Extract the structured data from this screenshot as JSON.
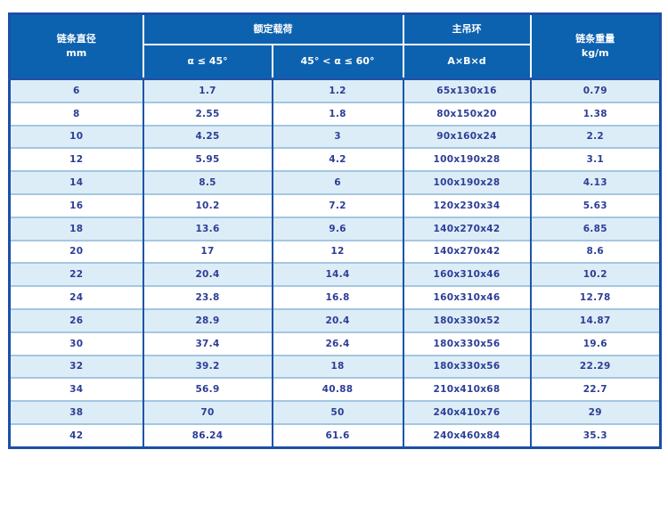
{
  "colors": {
    "header_bg": "#0d62af",
    "header_text": "#ffffff",
    "row_alt_bg": "#ddedf7",
    "row_bg": "#ffffff",
    "data_text": "#2c3e96",
    "outer_border": "#1c4fa6",
    "column_divider": "#1d55a8",
    "row_divider": "#a3c7e1"
  },
  "table": {
    "header": {
      "diameter_title": "链条直径",
      "diameter_unit": "mm",
      "rated_load": "额定载荷",
      "angle_le_45": "α ≤ 45°",
      "angle_45_60": "45° < α ≤ 60°",
      "main_ring": "主吊环",
      "ring_dims": "A×B×d",
      "weight_title": "链条重量",
      "weight_unit": "kg/m"
    },
    "rows": [
      [
        "6",
        "1.7",
        "1.2",
        "65x130x16",
        "0.79"
      ],
      [
        "8",
        "2.55",
        "1.8",
        "80x150x20",
        "1.38"
      ],
      [
        "10",
        "4.25",
        "3",
        "90x160x24",
        "2.2"
      ],
      [
        "12",
        "5.95",
        "4.2",
        "100x190x28",
        "3.1"
      ],
      [
        "14",
        "8.5",
        "6",
        "100x190x28",
        "4.13"
      ],
      [
        "16",
        "10.2",
        "7.2",
        "120x230x34",
        "5.63"
      ],
      [
        "18",
        "13.6",
        "9.6",
        "140x270x42",
        "6.85"
      ],
      [
        "20",
        "17",
        "12",
        "140x270x42",
        "8.6"
      ],
      [
        "22",
        "20.4",
        "14.4",
        "160x310x46",
        "10.2"
      ],
      [
        "24",
        "23.8",
        "16.8",
        "160x310x46",
        "12.78"
      ],
      [
        "26",
        "28.9",
        "20.4",
        "180x330x52",
        "14.87"
      ],
      [
        "30",
        "37.4",
        "26.4",
        "180x330x56",
        "19.6"
      ],
      [
        "32",
        "39.2",
        "18",
        "180x330x56",
        "22.29"
      ],
      [
        "34",
        "56.9",
        "40.88",
        "210x410x68",
        "22.7"
      ],
      [
        "38",
        "70",
        "50",
        "240x410x76",
        "29"
      ],
      [
        "42",
        "86.24",
        "61.6",
        "240x460x84",
        "35.3"
      ]
    ]
  }
}
